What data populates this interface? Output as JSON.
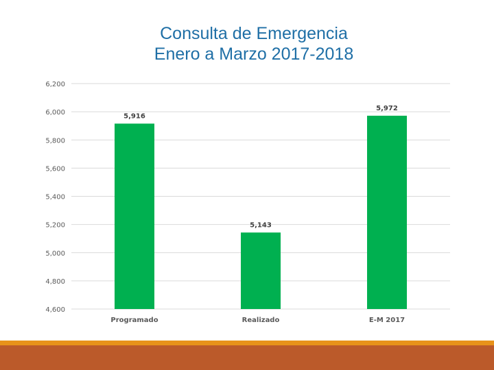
{
  "colors": {
    "title": "#1f6fa6",
    "bar": "#00b050",
    "grid": "#d9d9d9",
    "footer_line": "#e8921a",
    "footer_band": "#bb5a2a"
  },
  "chart_data": {
    "type": "bar",
    "title": "Consulta de Emergencia",
    "subtitle": "Enero a Marzo 2017-2018",
    "categories": [
      "Programado",
      "Realizado",
      "E-M 2017"
    ],
    "values": [
      5916,
      5143,
      5972
    ],
    "data_labels": [
      "5,916",
      "5,143",
      "5,972"
    ],
    "ylim": [
      4600,
      6200
    ],
    "yticks": [
      4600,
      4800,
      5000,
      5200,
      5400,
      5600,
      5800,
      6000,
      6200
    ],
    "ytick_labels": [
      "4,600",
      "4,800",
      "5,000",
      "5,200",
      "5,400",
      "5,600",
      "5,800",
      "6,000",
      "6,200"
    ],
    "xlabel": "",
    "ylabel": "",
    "grid": true,
    "legend": "none"
  }
}
